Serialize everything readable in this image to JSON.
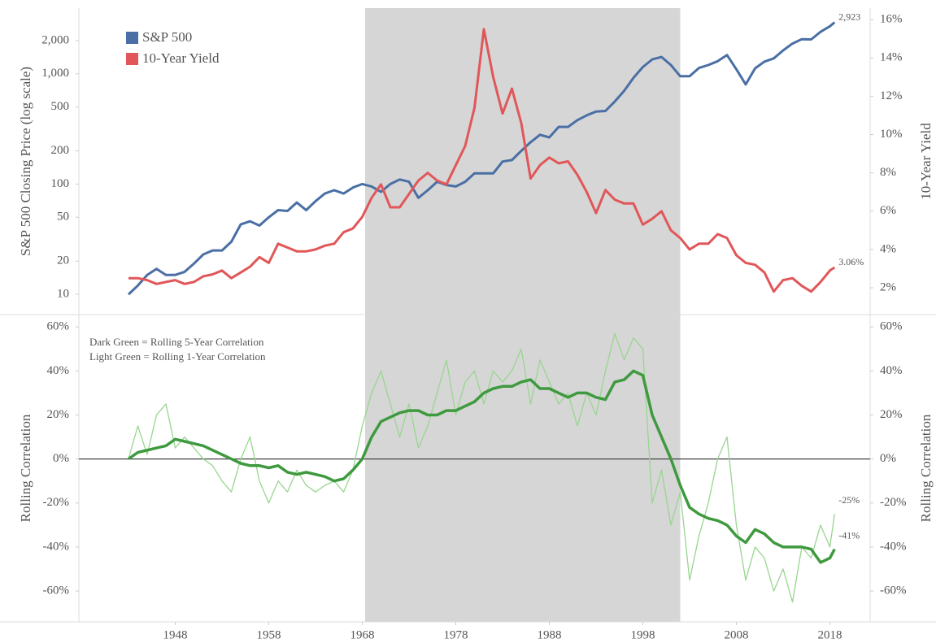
{
  "chart_data": [
    {
      "type": "line",
      "ylog": true,
      "highlight": [
        1968.3,
        2002.0
      ],
      "highlight_color": "#d6d6d6",
      "y_label": "S&P 500 Closing Price (log scale)",
      "y_label_color": "#5b85b8",
      "y2_label": "10-Year Yield",
      "y2_label_color": "#e06666",
      "x": [
        1943,
        1944,
        1945,
        1946,
        1947,
        1948,
        1949,
        1950,
        1951,
        1952,
        1953,
        1954,
        1955,
        1956,
        1957,
        1958,
        1959,
        1960,
        1961,
        1962,
        1963,
        1964,
        1965,
        1966,
        1967,
        1968,
        1969,
        1970,
        1971,
        1972,
        1973,
        1974,
        1975,
        1976,
        1977,
        1978,
        1979,
        1980,
        1981,
        1982,
        1983,
        1984,
        1985,
        1986,
        1987,
        1988,
        1989,
        1990,
        1991,
        1992,
        1993,
        1994,
        1995,
        1996,
        1997,
        1998,
        1999,
        2000,
        2001,
        2002,
        2003,
        2004,
        2005,
        2006,
        2007,
        2008,
        2009,
        2010,
        2011,
        2012,
        2013,
        2014,
        2015,
        2016,
        2017,
        2018,
        2018.5
      ],
      "xlim": [
        1937.7,
        2022.3
      ],
      "xticks": [
        1948,
        1958,
        1968,
        1978,
        1988,
        1998,
        2008,
        2018
      ],
      "ylim": [
        6.55,
        3940
      ],
      "yticks": [
        10,
        20,
        50,
        100,
        200,
        500,
        {
          "value": 1000,
          "label": "1,000"
        },
        {
          "value": 2000,
          "label": "2,000"
        }
      ],
      "y2lim": [
        0.6,
        16.6
      ],
      "y2ticks": [
        {
          "value": 2,
          "label": "2%"
        },
        {
          "value": 4,
          "label": "4%"
        },
        {
          "value": 6,
          "label": "6%"
        },
        {
          "value": 8,
          "label": "8%"
        },
        {
          "value": 10,
          "label": "10%"
        },
        {
          "value": 12,
          "label": "12%"
        },
        {
          "value": 14,
          "label": "14%"
        },
        {
          "value": 16,
          "label": "16%"
        }
      ],
      "series": [
        {
          "name": "S&P 500",
          "color": "#4a6fa5",
          "end_label": "2,923",
          "values": [
            10,
            12,
            15,
            17,
            15,
            15,
            16,
            19,
            23,
            25,
            25,
            30,
            43,
            46,
            42,
            50,
            58,
            57,
            68,
            58,
            70,
            82,
            88,
            82,
            93,
            100,
            95,
            85,
            100,
            110,
            105,
            75,
            88,
            105,
            98,
            95,
            105,
            125,
            125,
            125,
            160,
            165,
            200,
            240,
            280,
            265,
            330,
            330,
            380,
            420,
            455,
            460,
            560,
            700,
            920,
            1150,
            1350,
            1420,
            1200,
            950,
            950,
            1130,
            1200,
            1300,
            1480,
            1100,
            800,
            1120,
            1290,
            1380,
            1630,
            1880,
            2060,
            2050,
            2400,
            2700,
            2923
          ]
        },
        {
          "name": "10-Year Yield",
          "color": "#e15759",
          "axis": "y2",
          "end_label": "3.06%",
          "values": [
            2.5,
            2.5,
            2.4,
            2.2,
            2.3,
            2.4,
            2.2,
            2.3,
            2.6,
            2.7,
            2.9,
            2.5,
            2.8,
            3.1,
            3.6,
            3.3,
            4.3,
            4.1,
            3.9,
            3.9,
            4.0,
            4.2,
            4.3,
            4.9,
            5.1,
            5.7,
            6.7,
            7.4,
            6.2,
            6.2,
            6.9,
            7.6,
            8.0,
            7.6,
            7.4,
            8.4,
            9.4,
            11.4,
            15.5,
            13.0,
            11.1,
            12.4,
            10.6,
            7.7,
            8.4,
            8.8,
            8.5,
            8.6,
            7.9,
            7.0,
            5.9,
            7.1,
            6.6,
            6.4,
            6.4,
            5.3,
            5.6,
            6.0,
            5.0,
            4.6,
            4.0,
            4.3,
            4.3,
            4.8,
            4.6,
            3.7,
            3.3,
            3.2,
            2.8,
            1.8,
            2.4,
            2.5,
            2.1,
            1.8,
            2.3,
            2.9,
            3.06
          ]
        }
      ]
    },
    {
      "type": "line",
      "highlight": [
        1968.3,
        2002.0
      ],
      "highlight_color": "#d6d6d6",
      "zero_line": true,
      "y_label": "Rolling Correlation",
      "y2_label": "Rolling Correlation",
      "x": [
        1943,
        1944,
        1945,
        1946,
        1947,
        1948,
        1949,
        1950,
        1951,
        1952,
        1953,
        1954,
        1955,
        1956,
        1957,
        1958,
        1959,
        1960,
        1961,
        1962,
        1963,
        1964,
        1965,
        1966,
        1967,
        1968,
        1969,
        1970,
        1971,
        1972,
        1973,
        1974,
        1975,
        1976,
        1977,
        1978,
        1979,
        1980,
        1981,
        1982,
        1983,
        1984,
        1985,
        1986,
        1987,
        1988,
        1989,
        1990,
        1991,
        1992,
        1993,
        1994,
        1995,
        1996,
        1997,
        1998,
        1999,
        2000,
        2001,
        2002,
        2003,
        2004,
        2005,
        2006,
        2007,
        2008,
        2009,
        2010,
        2011,
        2012,
        2013,
        2014,
        2015,
        2016,
        2017,
        2018,
        2018.5
      ],
      "xlim": [
        1937.7,
        2022.3
      ],
      "xticks": [
        1948,
        1958,
        1968,
        1978,
        1988,
        1998,
        2008,
        2018
      ],
      "ylim": [
        -74,
        65.6
      ],
      "yticks": [
        {
          "value": 60,
          "label": "60%"
        },
        {
          "value": 40,
          "label": "40%"
        },
        {
          "value": 20,
          "label": "20%"
        },
        {
          "value": 0,
          "label": "0%"
        },
        {
          "value": -20,
          "label": "-20%"
        },
        {
          "value": -40,
          "label": "-40%"
        },
        {
          "value": -60,
          "label": "-60%"
        }
      ],
      "y2ticks": [
        {
          "value": 60,
          "label": "60%"
        },
        {
          "value": 40,
          "label": "40%"
        },
        {
          "value": 20,
          "label": "20%"
        },
        {
          "value": 0,
          "label": "0%"
        },
        {
          "value": -20,
          "label": "-20%"
        },
        {
          "value": -40,
          "label": "-40%"
        },
        {
          "value": -60,
          "label": "-60%"
        }
      ],
      "series": [
        {
          "name": "Light Green = Rolling 1-Year Correlation",
          "color": "#98d68f",
          "width": 1.3,
          "end_label": "-25%",
          "values": [
            0,
            15,
            2,
            20,
            25,
            5,
            10,
            5,
            0,
            -3,
            -10,
            -15,
            0,
            10,
            -10,
            -20,
            -10,
            -15,
            -5,
            -12,
            -15,
            -12,
            -10,
            -15,
            -5,
            15,
            30,
            40,
            25,
            10,
            25,
            5,
            15,
            30,
            45,
            20,
            35,
            40,
            25,
            40,
            35,
            40,
            50,
            25,
            45,
            35,
            25,
            30,
            15,
            30,
            20,
            40,
            57,
            45,
            55,
            50,
            -20,
            -5,
            -30,
            -15,
            -55,
            -35,
            -20,
            0,
            10,
            -30,
            -55,
            -40,
            -45,
            -60,
            -50,
            -65,
            -40,
            -45,
            -30,
            -40,
            -25
          ]
        },
        {
          "name": "Dark Green = Rolling 5-Year Correlation",
          "color": "#3f9a3f",
          "width": 3.5,
          "end_label": "-41%",
          "values": [
            0,
            3,
            4,
            5,
            6,
            9,
            8,
            7,
            6,
            4,
            2,
            0,
            -2,
            -3,
            -3,
            -4,
            -3,
            -6,
            -7,
            -6,
            -7,
            -8,
            -10,
            -9,
            -5,
            0,
            10,
            17,
            19,
            21,
            22,
            22,
            20,
            20,
            22,
            22,
            24,
            26,
            30,
            32,
            33,
            33,
            35,
            36,
            32,
            32,
            30,
            28,
            30,
            30,
            28,
            27,
            35,
            36,
            40,
            38,
            20,
            10,
            0,
            -12,
            -22,
            -25,
            -27,
            -28,
            -30,
            -35,
            -38,
            -32,
            -34,
            -38,
            -40,
            -40,
            -40,
            -41,
            -47,
            -45,
            -41
          ]
        }
      ]
    }
  ]
}
